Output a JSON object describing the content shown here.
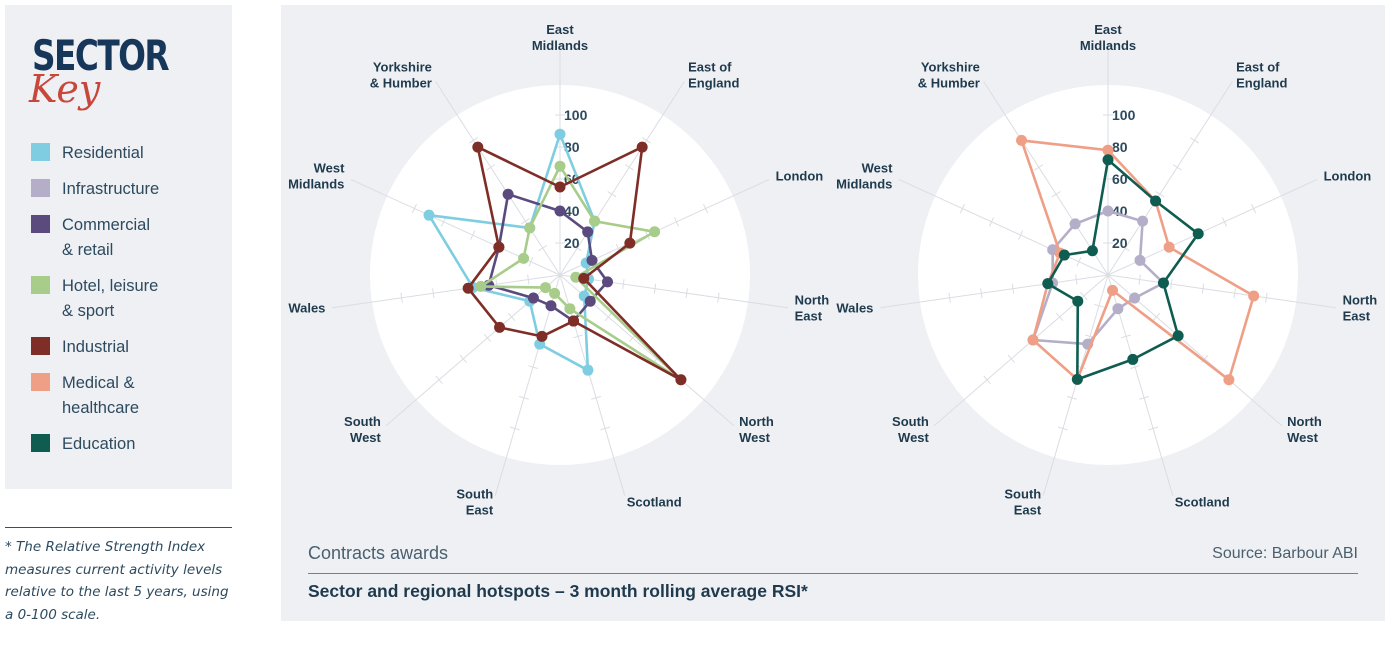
{
  "key": {
    "title": "SECTOR",
    "subtitle": "Key",
    "items": [
      {
        "label": "Residential",
        "color": "#7ecde1"
      },
      {
        "label": "Infrastructure",
        "color": "#b5aec9"
      },
      {
        "label": "Commercial\n& retail",
        "color": "#5a4a7e"
      },
      {
        "label": "Hotel, leisure\n& sport",
        "color": "#a8cc8a"
      },
      {
        "label": "Industrial",
        "color": "#7e2e26"
      },
      {
        "label": "Medical &\nhealthcare",
        "color": "#ef9f86"
      },
      {
        "label": "Education",
        "color": "#0f5d51"
      }
    ]
  },
  "note": "* The Relative Strength Index measures current activity levels relative to the last 5 years, using a 0-100 scale.",
  "caption": "Contracts awards",
  "source": "Source: Barbour ABI",
  "footer_title": "Sector and regional hotspots – 3 month rolling average RSI*",
  "chart_data": [
    {
      "type": "radar",
      "categories": [
        "East\nMidlands",
        "East of\nEngland",
        "London",
        "North\nEast",
        "North\nWest",
        "Scotland",
        "South\nEast",
        "South\nWest",
        "Wales",
        "West\nMidlands",
        "Yorkshire\n& Humber"
      ],
      "ticks": [
        20,
        40,
        60,
        80,
        100
      ],
      "rlim": [
        0,
        100
      ],
      "series": [
        {
          "name": "Residential",
          "values": [
            88,
            40,
            18,
            18,
            20,
            62,
            45,
            25,
            55,
            90,
            35
          ]
        },
        {
          "name": "Infrastructure",
          "values": [
            null,
            null,
            null,
            null,
            null,
            null,
            null,
            null,
            null,
            null,
            null
          ]
        },
        {
          "name": "Commercial & retail",
          "values": [
            40,
            32,
            22,
            30,
            25,
            30,
            20,
            22,
            45,
            42,
            60
          ]
        },
        {
          "name": "Hotel, leisure & sport",
          "values": [
            68,
            40,
            65,
            10,
            100,
            22,
            12,
            12,
            50,
            25,
            35
          ]
        },
        {
          "name": "Industrial",
          "values": [
            55,
            95,
            48,
            15,
            100,
            30,
            40,
            50,
            58,
            42,
            95
          ]
        }
      ]
    },
    {
      "type": "radar",
      "categories": [
        "East\nMidlands",
        "East of\nEngland",
        "London",
        "North\nEast",
        "North\nWest",
        "Scotland",
        "South\nEast",
        "South\nWest",
        "Wales",
        "West\nMidlands",
        "Yorkshire\n& Humber"
      ],
      "ticks": [
        20,
        40,
        60,
        80,
        100
      ],
      "rlim": [
        0,
        100
      ],
      "series": [
        {
          "name": "Infrastructure",
          "values": [
            40,
            40,
            22,
            35,
            22,
            22,
            45,
            62,
            35,
            38,
            38
          ]
        },
        {
          "name": "Medical & healthcare",
          "values": [
            78,
            55,
            42,
            92,
            100,
            10,
            68,
            62,
            38,
            33,
            100
          ]
        },
        {
          "name": "Education",
          "values": [
            72,
            55,
            62,
            35,
            58,
            55,
            68,
            25,
            38,
            30,
            18
          ]
        }
      ]
    }
  ]
}
